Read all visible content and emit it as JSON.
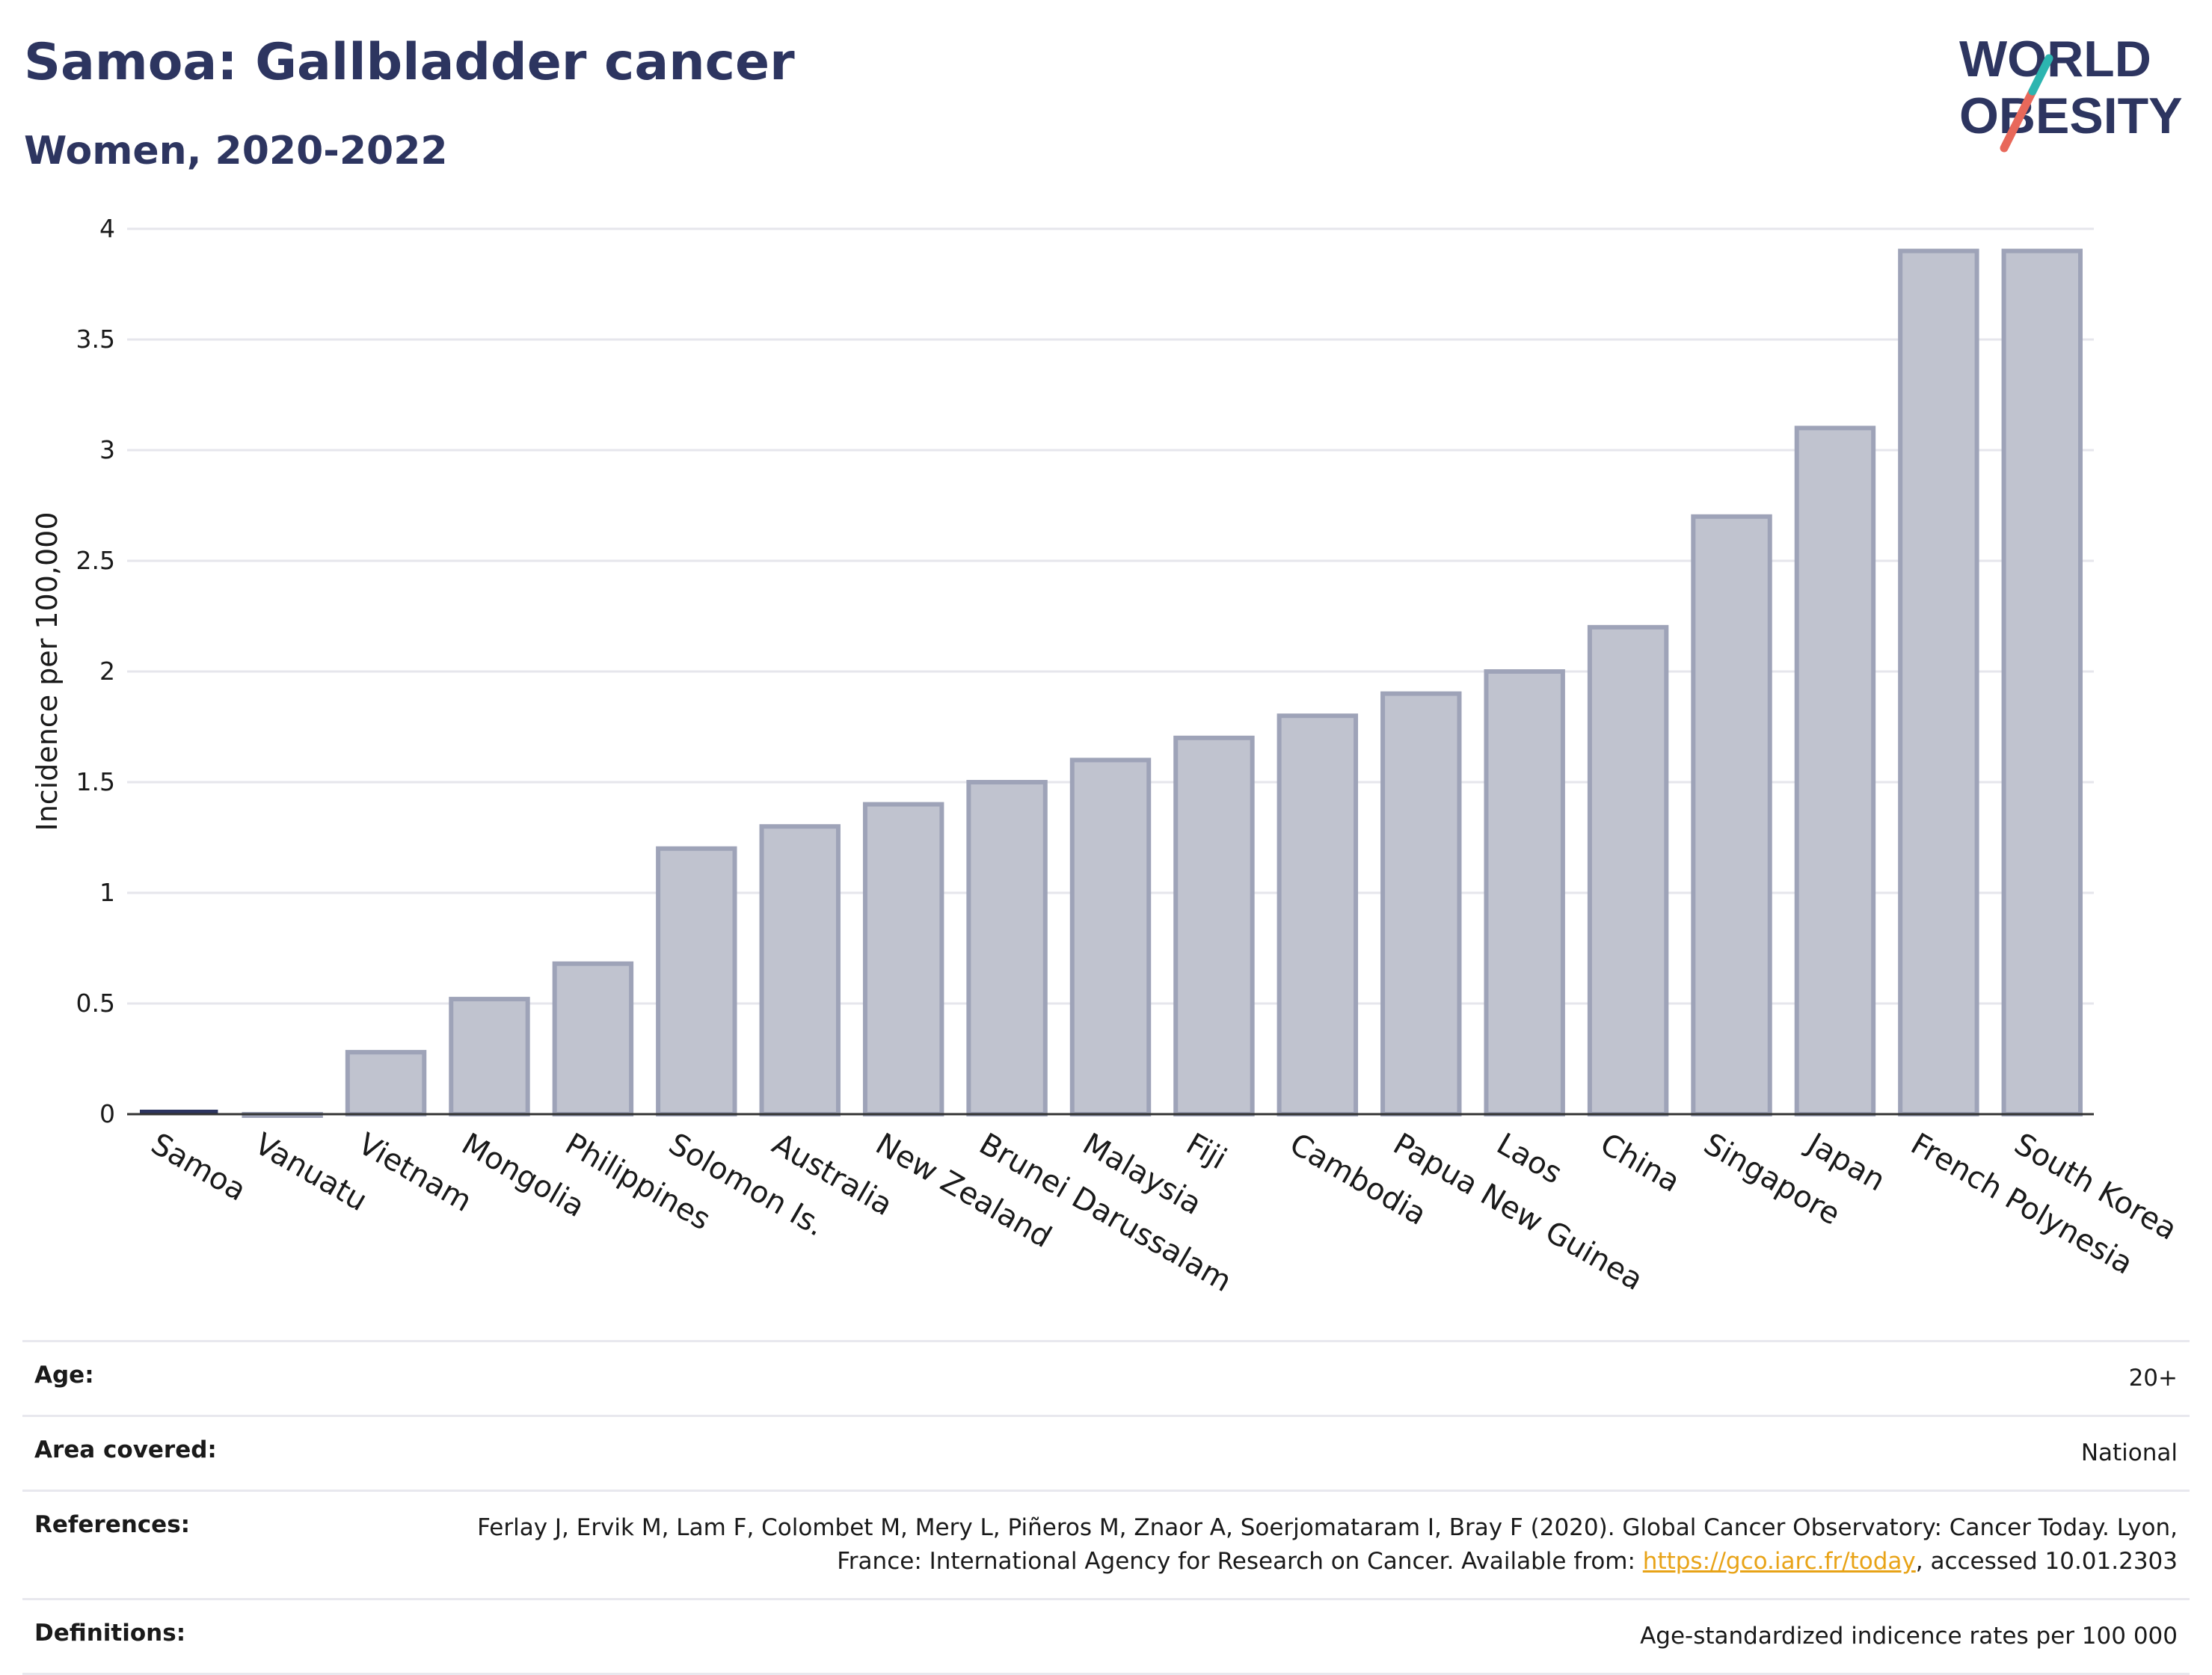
{
  "header": {
    "title": "Samoa: Gallbladder cancer",
    "subtitle": "Women, 2020-2022"
  },
  "logo": {
    "line1": "WORLD",
    "line2": "OBESITY",
    "colors": {
      "text": "#2d3560",
      "slash_red": "#e8685a",
      "slash_teal": "#2cb5b0"
    }
  },
  "colors": {
    "bar_fill": "#c0c3cf",
    "bar_stroke": "#9ea3b8",
    "highlight": "#2d3560",
    "grid": "#e6e6ec",
    "axis": "#333333"
  },
  "chart_data": {
    "type": "bar",
    "ylabel": "Incidence per 100,000",
    "ylim": [
      0,
      4
    ],
    "yticks": [
      0,
      0.5,
      1,
      1.5,
      2,
      2.5,
      3,
      3.5,
      4
    ],
    "ytick_labels": [
      "0",
      "0.5",
      "1",
      "1.5",
      "2",
      "2.5",
      "3",
      "3.5",
      "4"
    ],
    "highlight": "Samoa",
    "categories": [
      "Samoa",
      "Vanuatu",
      "Vietnam",
      "Mongolia",
      "Philippines",
      "Solomon Is.",
      "Australia",
      "New Zealand",
      "Brunei Darussalam",
      "Malaysia",
      "Fiji",
      "Cambodia",
      "Papua New Guinea",
      "Laos",
      "China",
      "Singapore",
      "Japan",
      "French Polynesia",
      "South Korea"
    ],
    "values": [
      0,
      0,
      0.28,
      0.52,
      0.68,
      1.2,
      1.3,
      1.4,
      1.5,
      1.6,
      1.7,
      1.8,
      1.9,
      2.0,
      2.2,
      2.7,
      3.1,
      3.9,
      3.9
    ]
  },
  "meta": {
    "age_label": "Age:",
    "age_value": "20+",
    "area_label": "Area covered:",
    "area_value": "National",
    "references_label": "References:",
    "references_text": "Ferlay J, Ervik M, Lam F, Colombet M, Mery L, Piñeros M, Znaor A, Soerjomataram I, Bray F (2020). Global Cancer Observatory: Cancer Today. Lyon, France: International Agency for Research on Cancer. Available from: ",
    "references_link": "https://gco.iarc.fr/today",
    "references_suffix": ", accessed 10.01.2303",
    "definitions_label": "Definitions:",
    "definitions_value": "Age-standardized indicence rates per 100 000"
  }
}
